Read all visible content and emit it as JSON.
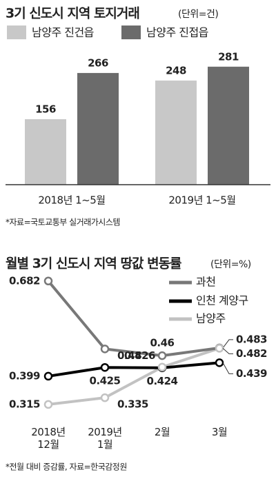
{
  "charts": [
    {
      "type": "bar",
      "title": "3기 신도시 지역 토지거래",
      "unit": "(단위=건)",
      "categories": [
        "2018년 1~5월",
        "2019년 1~5월"
      ],
      "series": [
        {
          "name": "남양주 진건읍",
          "color": "#c8c8c8",
          "values": [
            156,
            248
          ]
        },
        {
          "name": "남양주 진접읍",
          "color": "#6b6b6b",
          "values": [
            266,
            281
          ]
        }
      ],
      "ylim": [
        0,
        320
      ],
      "source": "*자료=국토교통부 실거래가시스템"
    },
    {
      "type": "line",
      "title": "월별 3기 신도시 지역 땅값 변동률",
      "unit": "(단위=%)",
      "categories": [
        "2018년\n12월",
        "2019년\n1월",
        "2월",
        "3월"
      ],
      "series": [
        {
          "name": "과천",
          "color": "#787878",
          "values": [
            0.682,
            0.48,
            0.46,
            0.483
          ]
        },
        {
          "name": "인천 계양구",
          "color": "#000000",
          "values": [
            0.399,
            0.425,
            0.424,
            0.439
          ]
        },
        {
          "name": "남양주",
          "color": "#c2c2c2",
          "values": [
            0.315,
            0.335,
            0.426,
            0.482
          ]
        }
      ],
      "ylim": [
        0.28,
        0.7
      ],
      "source": "*전월 대비 증감률, 자료=한국감정원"
    }
  ]
}
